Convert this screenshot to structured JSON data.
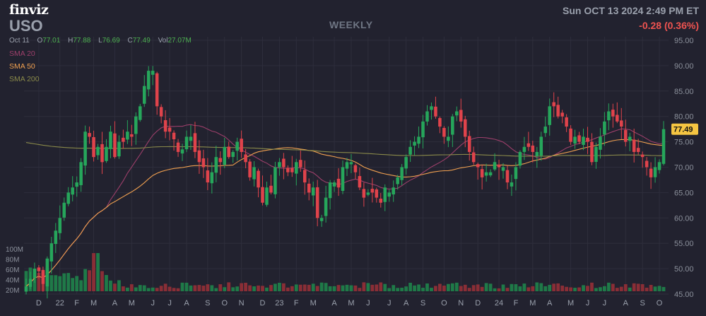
{
  "header": {
    "brand": "finviz",
    "ticker": "USO",
    "period": "WEEKLY",
    "datetime": "Sun OCT 13 2024 2:49 PM ET",
    "change": "-0.28 (0.36%)",
    "ohlc": {
      "date": "Oct 11",
      "open_label": "O",
      "open": "77.01",
      "high_label": "H",
      "high": "77.88",
      "low_label": "L",
      "low": "76.69",
      "close_label": "C",
      "close": "77.49",
      "vol_label": "Vol",
      "vol": "27.07M"
    }
  },
  "legend": {
    "sma20": "SMA 20",
    "sma50": "SMA 50",
    "sma200": "SMA 200"
  },
  "colors": {
    "background": "#22222f",
    "grid": "#2e2e3c",
    "up": "#26a65b",
    "down": "#e0434b",
    "sma20": "#9c3f6a",
    "sma50": "#f0a050",
    "sma200": "#8a8a4a",
    "price_tag": "#f5c542"
  },
  "chart_data": {
    "type": "candlestick",
    "frequency": "weekly",
    "y_axis": {
      "range": [
        45,
        95
      ],
      "ticks": [
        "95.00",
        "90.00",
        "85.00",
        "80.00",
        "75.00",
        "70.00",
        "65.00",
        "60.00",
        "55.00",
        "50.00",
        "45.00"
      ],
      "last_price_tag": "77.49"
    },
    "volume_axis": {
      "ticks": [
        "100M",
        "80M",
        "60M",
        "40M",
        "20M"
      ]
    },
    "x_axis": {
      "labels": [
        {
          "text": "D",
          "week": 3
        },
        {
          "text": "22",
          "week": 8
        },
        {
          "text": "F",
          "week": 12
        },
        {
          "text": "M",
          "week": 16
        },
        {
          "text": "A",
          "week": 21
        },
        {
          "text": "M",
          "week": 25
        },
        {
          "text": "J",
          "week": 30
        },
        {
          "text": "J",
          "week": 34
        },
        {
          "text": "A",
          "week": 38
        },
        {
          "text": "S",
          "week": 43
        },
        {
          "text": "O",
          "week": 47
        },
        {
          "text": "N",
          "week": 51
        },
        {
          "text": "D",
          "week": 56
        },
        {
          "text": "23",
          "week": 60
        },
        {
          "text": "F",
          "week": 64
        },
        {
          "text": "M",
          "week": 68
        },
        {
          "text": "A",
          "week": 73
        },
        {
          "text": "M",
          "week": 77
        },
        {
          "text": "J",
          "week": 81
        },
        {
          "text": "J",
          "week": 86
        },
        {
          "text": "A",
          "week": 90
        },
        {
          "text": "S",
          "week": 94
        },
        {
          "text": "O",
          "week": 99
        },
        {
          "text": "N",
          "week": 103
        },
        {
          "text": "D",
          "week": 107
        },
        {
          "text": "24",
          "week": 112
        },
        {
          "text": "F",
          "week": 116
        },
        {
          "text": "M",
          "week": 120
        },
        {
          "text": "A",
          "week": 124
        },
        {
          "text": "M",
          "week": 129
        },
        {
          "text": "J",
          "week": 133
        },
        {
          "text": "J",
          "week": 137
        },
        {
          "text": "A",
          "week": 142
        },
        {
          "text": "S",
          "week": 146
        },
        {
          "text": "O",
          "week": 150
        }
      ]
    },
    "close": [
      46.5,
      48,
      50,
      49.5,
      47,
      52,
      55,
      57.5,
      60,
      63,
      65,
      66,
      67,
      71,
      77,
      76,
      72,
      74,
      71,
      74,
      77,
      72,
      75,
      75,
      77,
      76,
      80,
      82,
      86,
      89,
      89,
      82,
      80,
      77,
      77,
      75.5,
      73,
      73.5,
      76,
      76,
      73,
      71,
      70,
      67,
      69,
      72,
      71,
      74,
      72,
      73,
      75,
      73,
      71,
      68,
      70,
      66,
      63,
      66,
      65,
      70,
      71,
      70,
      69,
      69,
      71,
      70,
      67,
      65,
      66,
      60,
      60,
      64,
      67,
      67,
      66,
      70,
      71,
      71,
      69,
      66,
      64,
      65,
      65,
      64,
      63,
      66,
      65,
      66,
      68,
      70,
      72,
      74,
      75,
      76,
      79,
      81,
      82,
      80,
      78,
      76,
      76,
      80,
      81,
      79,
      76,
      73,
      71,
      70,
      68,
      69,
      69,
      71,
      70,
      70,
      67,
      67,
      70,
      73,
      74,
      74,
      73,
      73,
      76,
      78,
      82,
      82,
      80,
      80,
      78,
      75,
      76,
      75,
      76,
      75,
      71,
      74,
      76,
      79,
      81,
      80,
      79,
      78,
      75,
      76,
      73,
      73,
      72,
      70,
      68,
      70,
      71,
      77.49
    ],
    "sma20": [],
    "sma50": [],
    "sma200": []
  }
}
